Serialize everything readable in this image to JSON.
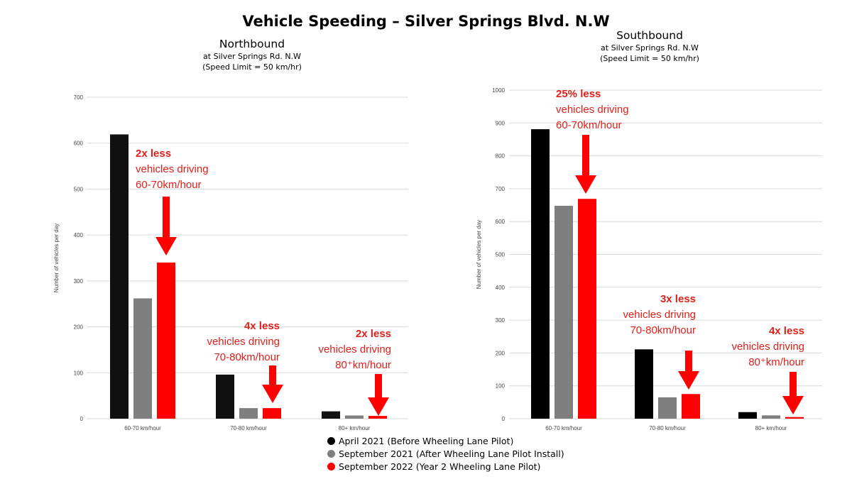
{
  "title": "Vehicle Speeding – Silver Springs Blvd. N.W",
  "colors": {
    "black": "#111111",
    "gray": "#7f7f7f",
    "red": "#ff0000",
    "annotation": "#e0201b",
    "grid": "#d9d9d9"
  },
  "panels": {
    "north": {
      "heading": "Northbound",
      "location": "at Silver Springs Rd. N.W",
      "limit": "(Speed Limit = 50 km/hr)"
    },
    "south": {
      "heading": "Southbound",
      "location": "at Silver Springs Rd. N.W",
      "limit": "(Speed Limit = 50 km/hr)"
    }
  },
  "legend": [
    {
      "label": "April 2021 (Before Wheeling Lane Pilot)",
      "color": "#000000"
    },
    {
      "label": "September  2021 (After Wheeling Lane Pilot Install)",
      "color": "#7f7f7f"
    },
    {
      "label": "September  2022 (Year 2 Wheeling Lane Pilot)",
      "color": "#ff0000"
    }
  ],
  "chart_data": [
    {
      "type": "bar",
      "title": "Northbound",
      "ylabel": "Number of vehicles per day",
      "ylim": [
        0,
        700
      ],
      "yticks": [
        0,
        100,
        200,
        300,
        400,
        500,
        600,
        700
      ],
      "grid": true,
      "categories": [
        "60-70 km/hour",
        "70-80 km/hour",
        "80+ km/hour"
      ],
      "series": [
        {
          "name": "April 2021 (Before Wheeling Lane Pilot)",
          "color": "#111111",
          "values": [
            619,
            96,
            16
          ]
        },
        {
          "name": "September  2021 (After Wheeling Lane Pilot Install)",
          "color": "#7f7f7f",
          "values": [
            262,
            23,
            7
          ]
        },
        {
          "name": "September  2022 (Year 2 Wheeling Lane Pilot)",
          "color": "#ff0000",
          "values": [
            340,
            23,
            6
          ]
        }
      ],
      "annotations": [
        {
          "lines": [
            "2x less",
            "vehicles driving",
            "60-70km/hour"
          ],
          "category": "60-70 km/hour"
        },
        {
          "lines": [
            "4x less",
            "vehicles driving",
            "70-80km/hour"
          ],
          "category": "70-80 km/hour"
        },
        {
          "lines": [
            "2x less",
            "vehicles driving",
            "80⁺km/hour"
          ],
          "category": "80+ km/hour"
        }
      ]
    },
    {
      "type": "bar",
      "title": "Southbound",
      "ylabel": "Number of vehicles per day",
      "ylim": [
        0,
        1000
      ],
      "yticks": [
        0,
        100,
        200,
        300,
        400,
        500,
        600,
        700,
        800,
        900,
        1000
      ],
      "grid": true,
      "categories": [
        "60-70 km/hour",
        "70-80 km/hour",
        "80+ km/hour"
      ],
      "series": [
        {
          "name": "April 2021 (Before Wheeling Lane Pilot)",
          "color": "#000000",
          "values": [
            881,
            211,
            20
          ]
        },
        {
          "name": "September  2021 (After Wheeling Lane Pilot Install)",
          "color": "#7f7f7f",
          "values": [
            648,
            65,
            10
          ]
        },
        {
          "name": "September  2022 (Year 2 Wheeling Lane Pilot)",
          "color": "#ff0000",
          "values": [
            669,
            75,
            5
          ]
        }
      ],
      "annotations": [
        {
          "lines": [
            "25% less",
            "vehicles driving",
            "60-70km/hour"
          ],
          "category": "60-70 km/hour"
        },
        {
          "lines": [
            "3x less",
            "vehicles driving",
            "70-80km/hour"
          ],
          "category": "70-80 km/hour"
        },
        {
          "lines": [
            "4x less",
            "vehicles driving",
            "80⁺km/hour"
          ],
          "category": "80+ km/hour"
        }
      ]
    }
  ]
}
